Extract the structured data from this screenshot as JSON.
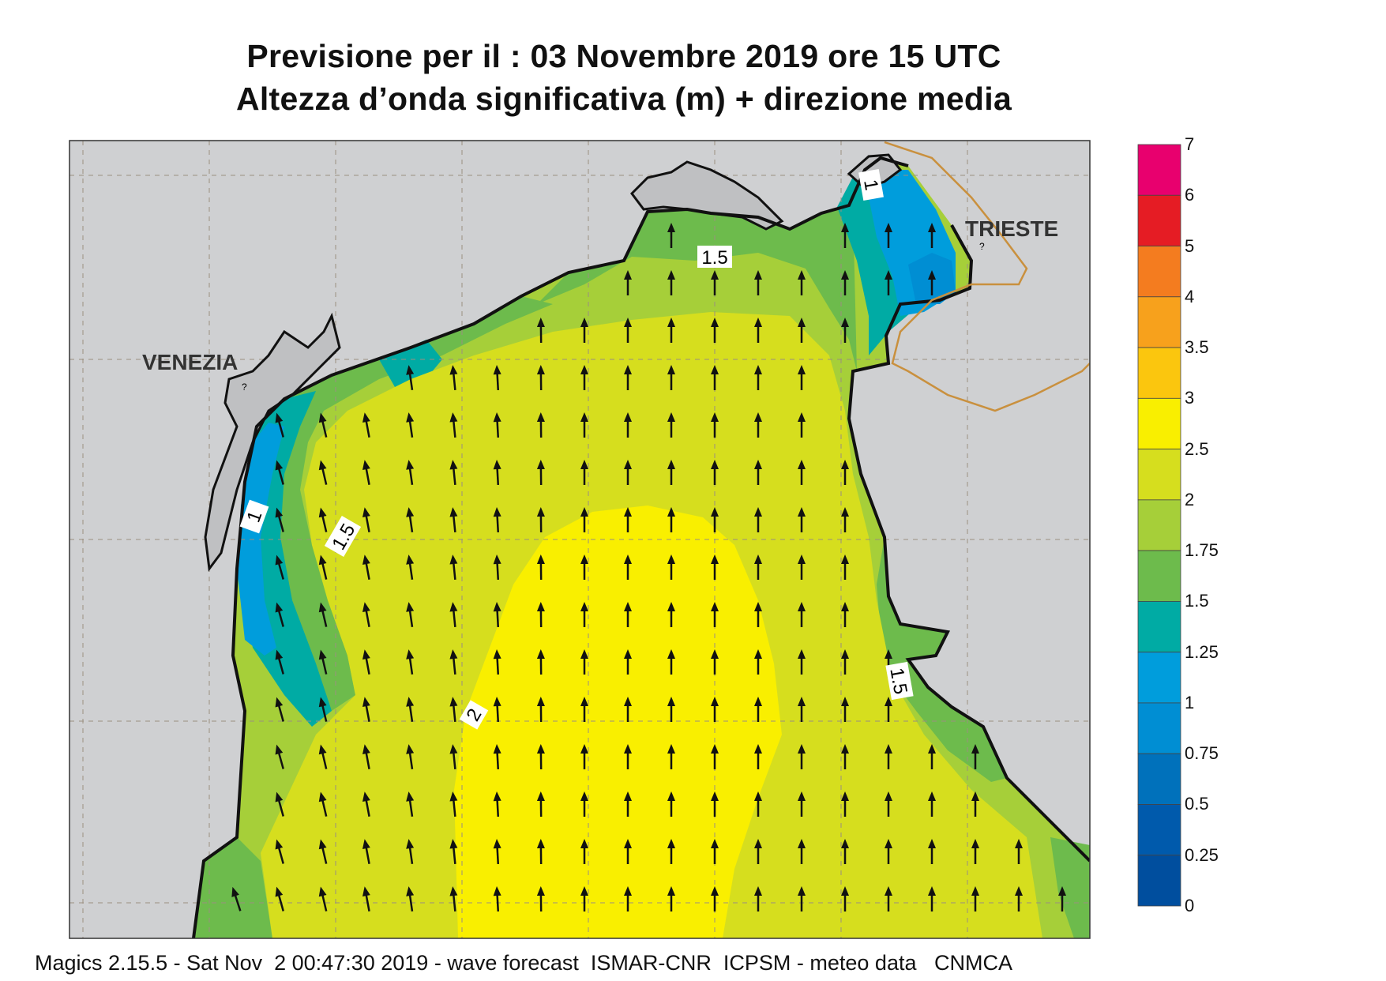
{
  "title": {
    "line1": "Previsione per il  :  03 Novembre  2019   ore 15 UTC",
    "line2": "Altezza d’onda significativa (m) + direzione media"
  },
  "map": {
    "city_labels": {
      "venezia": "VENEZIA",
      "trieste": "TRIESTE"
    },
    "contour_labels": [
      "1",
      "1",
      "1.5",
      "1.5",
      "1.5",
      "2"
    ],
    "unknown_markers": [
      "?",
      "?"
    ],
    "arrow_direction": "north"
  },
  "colorbar": {
    "labels": [
      "7",
      "6",
      "5",
      "4",
      "3.5",
      "3",
      "2.5",
      "2",
      "1.75",
      "1.5",
      "1.25",
      "1",
      "0.75",
      "0.5",
      "0.25",
      "0"
    ],
    "colors": [
      "#e8006e",
      "#e51c24",
      "#f47c1f",
      "#f7a11c",
      "#fbc60e",
      "#f9ef00",
      "#d6de1e",
      "#a6cf39",
      "#6dbb4c",
      "#00aba4",
      "#009ddc",
      "#008ed3",
      "#0071bb",
      "#005aac",
      "#004e9e"
    ]
  },
  "footer": "Magics 2.15.5 - Sat Nov  2 00:47:30 2019 - wave forecast  ISMAR-CNR  ICPSM - meteo data   CNMCA"
}
